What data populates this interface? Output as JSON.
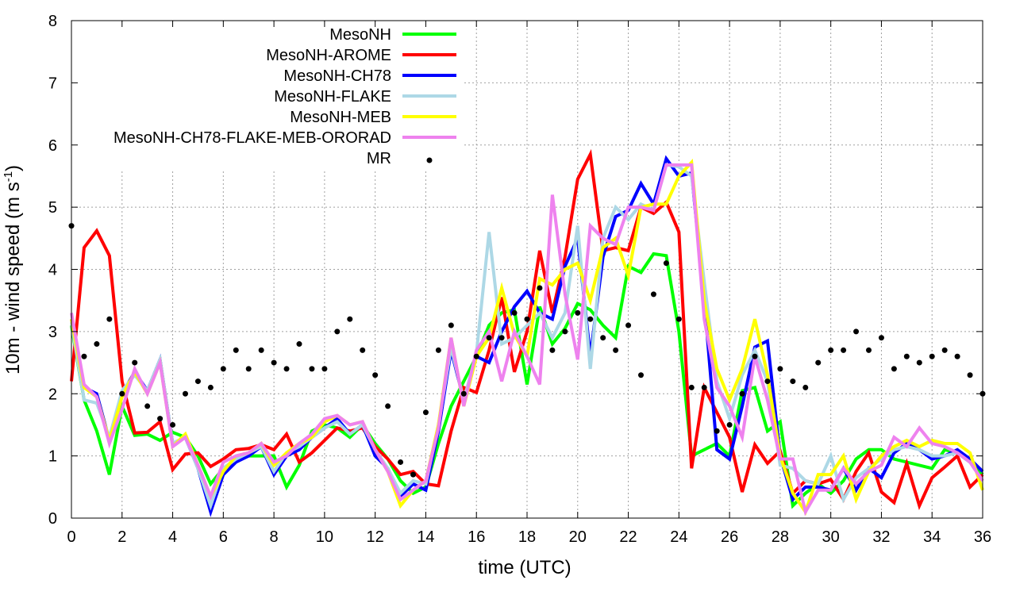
{
  "chart_data": {
    "type": "line",
    "xlabel": "time (UTC)",
    "ylabel": "10m - wind speed  (m s",
    "ylabel_sup": "-1",
    "ylabel_end": ")",
    "xlim": [
      0,
      36
    ],
    "ylim": [
      0,
      8
    ],
    "x_ticks": [
      "0",
      "2",
      "4",
      "6",
      "8",
      "10",
      "12",
      "14",
      "16",
      "18",
      "20",
      "22",
      "24",
      "26",
      "28",
      "30",
      "32",
      "34",
      "36"
    ],
    "y_ticks": [
      "0",
      "1",
      "2",
      "3",
      "4",
      "5",
      "6",
      "7",
      "8"
    ],
    "grid": true,
    "legend_position": "top-left",
    "x_start": 0,
    "x_step": 0.5,
    "series": [
      {
        "name": "MesoNH",
        "color": "#00ff00",
        "style": "line",
        "values": [
          3.1,
          1.9,
          1.4,
          0.7,
          1.8,
          1.33,
          1.35,
          1.25,
          1.38,
          1.3,
          1.0,
          0.55,
          0.8,
          0.95,
          1.0,
          1.0,
          1.0,
          0.5,
          0.85,
          1.4,
          1.5,
          1.45,
          1.3,
          1.5,
          1.2,
          0.95,
          0.6,
          0.4,
          0.5,
          1.2,
          1.8,
          2.2,
          2.6,
          3.1,
          3.3,
          3.35,
          2.15,
          3.4,
          2.8,
          3.05,
          3.45,
          3.35,
          3.1,
          2.9,
          4.05,
          3.95,
          4.25,
          4.22,
          3.0,
          1.0,
          1.1,
          1.2,
          1.0,
          2.05,
          2.1,
          1.4,
          1.55,
          0.2,
          0.4,
          0.55,
          0.4,
          0.6,
          0.95,
          1.1,
          1.1,
          0.95,
          0.9,
          0.85,
          0.8,
          1.1,
          1.05,
          0.9,
          0.7
        ]
      },
      {
        "name": "MesoNH-AROME",
        "color": "#ff0000",
        "style": "line",
        "values": [
          2.2,
          4.35,
          4.62,
          4.22,
          2.2,
          1.37,
          1.38,
          1.55,
          0.78,
          1.03,
          1.05,
          0.83,
          0.95,
          1.1,
          1.12,
          1.18,
          1.1,
          1.35,
          0.9,
          1.05,
          1.25,
          1.45,
          1.4,
          1.45,
          1.15,
          0.95,
          0.7,
          0.75,
          0.55,
          0.52,
          1.4,
          2.1,
          2.02,
          2.7,
          3.55,
          2.35,
          3.0,
          4.3,
          3.3,
          4.2,
          5.45,
          5.85,
          4.3,
          4.35,
          4.3,
          5.0,
          4.9,
          5.08,
          4.6,
          0.8,
          2.1,
          1.7,
          1.3,
          0.42,
          1.18,
          0.88,
          1.08,
          0.4,
          0.6,
          0.55,
          0.62,
          0.3,
          0.75,
          1.05,
          0.42,
          0.25,
          0.88,
          0.2,
          0.65,
          0.82,
          1.0,
          0.5,
          0.7
        ]
      },
      {
        "name": "MesoNH-CH78",
        "color": "#0000ff",
        "style": "line",
        "values": [
          3.2,
          2.1,
          2.0,
          1.25,
          2.0,
          2.35,
          2.05,
          2.55,
          1.2,
          1.3,
          0.8,
          0.1,
          0.7,
          0.9,
          1.0,
          1.15,
          0.7,
          1.0,
          1.1,
          1.3,
          1.45,
          1.6,
          1.35,
          1.5,
          1.0,
          0.8,
          0.35,
          0.55,
          0.45,
          1.4,
          2.7,
          1.9,
          2.6,
          2.5,
          3.0,
          3.4,
          3.65,
          3.3,
          3.2,
          4.05,
          4.5,
          2.6,
          4.2,
          4.85,
          4.95,
          5.38,
          5.05,
          5.78,
          5.5,
          5.55,
          3.5,
          1.1,
          0.95,
          1.8,
          2.75,
          2.85,
          1.0,
          0.3,
          0.5,
          0.5,
          0.45,
          0.8,
          0.45,
          0.8,
          0.65,
          1.05,
          1.2,
          1.1,
          0.95,
          1.0,
          1.1,
          0.95,
          0.75
        ]
      },
      {
        "name": "MesoNH-FLAKE",
        "color": "#add8e6",
        "style": "line",
        "values": [
          3.15,
          1.9,
          1.85,
          1.3,
          2.05,
          2.3,
          2.05,
          2.55,
          1.2,
          1.3,
          0.8,
          0.2,
          0.8,
          0.95,
          1.05,
          1.15,
          0.75,
          1.05,
          1.15,
          1.3,
          1.45,
          1.55,
          1.35,
          1.5,
          1.1,
          0.8,
          0.4,
          0.6,
          0.55,
          1.5,
          2.75,
          1.9,
          2.65,
          4.6,
          2.8,
          2.9,
          3.1,
          3.3,
          2.9,
          3.3,
          4.7,
          2.4,
          4.5,
          5.0,
          4.8,
          5.05,
          4.95,
          5.68,
          5.65,
          5.5,
          3.8,
          2.2,
          1.6,
          2.3,
          2.7,
          2.2,
          0.85,
          0.8,
          0.6,
          0.55,
          1.0,
          0.3,
          0.65,
          0.8,
          0.95,
          1.1,
          1.15,
          1.1,
          1.0,
          1.0,
          1.05,
          0.9,
          0.6
        ]
      },
      {
        "name": "MesoNH-MEB",
        "color": "#ffff00",
        "style": "line",
        "values": [
          3.2,
          2.1,
          1.95,
          1.25,
          1.95,
          2.35,
          2.0,
          2.5,
          1.15,
          1.35,
          0.85,
          0.35,
          0.75,
          1.0,
          1.05,
          1.2,
          0.85,
          1.05,
          1.2,
          1.3,
          1.55,
          1.65,
          1.5,
          1.55,
          1.1,
          0.75,
          0.2,
          0.45,
          0.6,
          1.5,
          2.9,
          1.8,
          2.6,
          2.9,
          3.7,
          2.95,
          2.6,
          3.85,
          3.75,
          4.0,
          4.1,
          3.5,
          4.35,
          4.5,
          3.9,
          5.0,
          5.05,
          5.05,
          5.5,
          5.72,
          3.5,
          2.4,
          1.9,
          2.4,
          3.2,
          2.3,
          1.0,
          0.4,
          0.1,
          0.7,
          0.7,
          1.0,
          0.3,
          0.75,
          1.0,
          1.15,
          1.25,
          1.15,
          1.25,
          1.2,
          1.2,
          1.05,
          0.45
        ]
      },
      {
        "name": "MesoNH-CH78-FLAKE-MEB-ORORAD",
        "color": "#ee82ee",
        "style": "line",
        "values": [
          3.3,
          2.15,
          1.95,
          1.2,
          1.75,
          2.4,
          2.0,
          2.5,
          1.15,
          1.3,
          0.85,
          0.35,
          0.9,
          1.0,
          1.05,
          1.2,
          0.9,
          1.0,
          1.2,
          1.35,
          1.6,
          1.65,
          1.5,
          1.55,
          1.1,
          0.75,
          0.3,
          0.45,
          0.6,
          1.45,
          2.9,
          1.8,
          2.7,
          3.0,
          2.2,
          3.0,
          2.6,
          2.15,
          5.2,
          3.6,
          2.55,
          4.7,
          4.5,
          4.4,
          5.0,
          5.0,
          4.95,
          5.68,
          5.68,
          5.68,
          3.2,
          2.1,
          1.8,
          1.3,
          2.6,
          1.9,
          0.95,
          0.95,
          0.1,
          0.45,
          0.45,
          0.8,
          0.55,
          0.75,
          0.85,
          1.3,
          1.15,
          1.45,
          1.2,
          1.15,
          1.05,
          0.9,
          0.6
        ]
      },
      {
        "name": "MR",
        "color": "#000000",
        "style": "points",
        "values": [
          4.7,
          2.6,
          2.8,
          3.2,
          2.0,
          2.5,
          1.8,
          1.6,
          1.5,
          2.0,
          2.2,
          2.1,
          2.4,
          2.7,
          2.4,
          2.7,
          2.5,
          2.4,
          2.8,
          2.4,
          2.4,
          3.0,
          3.2,
          2.7,
          2.3,
          1.8,
          0.9,
          0.7,
          1.7,
          2.7,
          3.1,
          2.0,
          2.6,
          2.9,
          2.9,
          3.3,
          3.2,
          3.7,
          2.7,
          3.0,
          3.3,
          3.2,
          2.9,
          2.7,
          3.1,
          2.3,
          3.6,
          4.1,
          3.2,
          2.1,
          2.1,
          1.4,
          1.5,
          2.0,
          2.6,
          2.2,
          2.4,
          2.2,
          2.1,
          2.5,
          2.7,
          2.7,
          3.0,
          2.7,
          2.9,
          2.4,
          2.6,
          2.5,
          2.6,
          2.7,
          2.6,
          2.3,
          2.0
        ]
      }
    ]
  }
}
